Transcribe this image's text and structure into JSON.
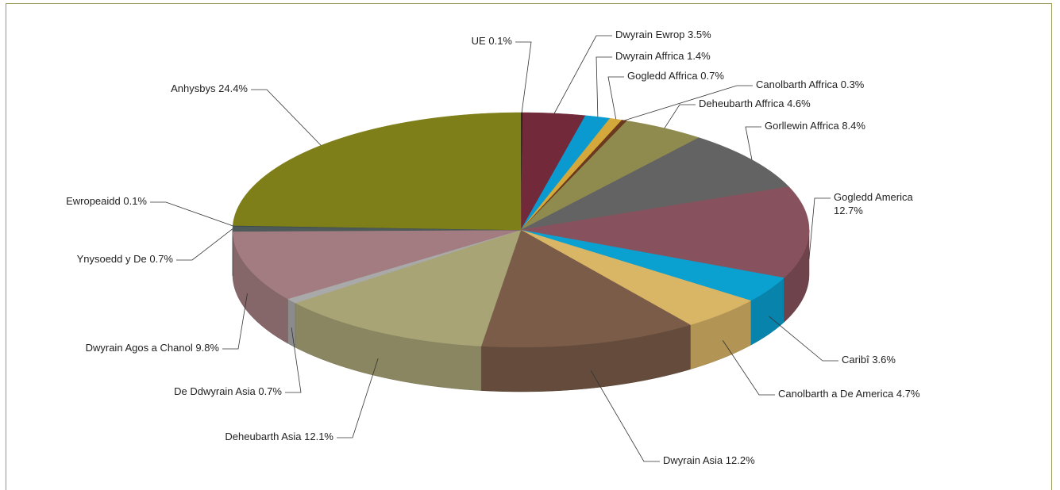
{
  "chart_data": {
    "type": "pie3d",
    "categories": [
      "UE",
      "Dwyrain Ewrop",
      "Dwyrain Affrica",
      "Gogledd Affrica",
      "Canolbarth Affrica",
      "Deheubarth Affrica",
      "Gorllewin Affrica",
      "Gogledd America",
      "Caribî",
      "Canolbarth a De America",
      "Dwyrain Asia",
      "Deheubarth Asia",
      "De Ddwyrain Asia",
      "Dwyrain Agos a Chanol",
      "Ynysoedd y De",
      "Ewropeaidd",
      "Anhysbys"
    ],
    "values": [
      0.1,
      3.5,
      1.4,
      0.7,
      0.3,
      4.6,
      8.4,
      12.7,
      3.6,
      4.7,
      12.2,
      12.1,
      0.7,
      9.8,
      0.7,
      0.1,
      24.4
    ],
    "value_labels": [
      "0.1%",
      "3.5%",
      "1.4%",
      "0.7%",
      "0.3%",
      "4.6%",
      "8.4%",
      "12.7%",
      "3.6%",
      "4.7%",
      "12.2%",
      "12.1%",
      "0.7%",
      "9.8%",
      "0.7%",
      "0.1%",
      "24.4%"
    ],
    "colors": [
      "#1a1a1a",
      "#722a3a",
      "#0a9ad0",
      "#d4a83a",
      "#6b3a1e",
      "#8f8b4e",
      "#636363",
      "#87525d",
      "#0aa0d0",
      "#d9b566",
      "#7a5c48",
      "#a8a476",
      "#a9a9a9",
      "#a27c80",
      "#4e5a5a",
      "#3a4a4a",
      "#7f7f1a"
    ]
  }
}
